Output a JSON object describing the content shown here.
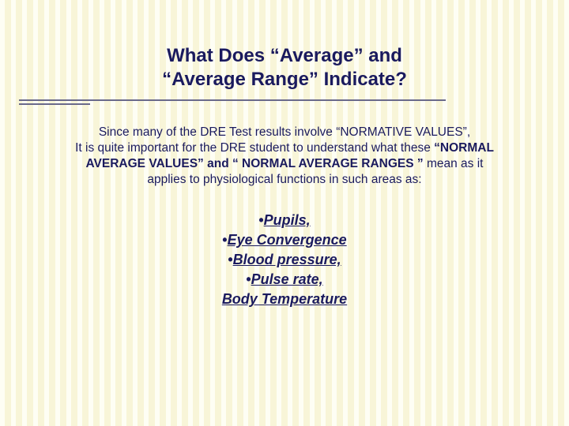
{
  "colors": {
    "text": "#1a1a5e",
    "rule": "#6a6a8a",
    "bg_base": "#fefef4",
    "bg_stripe": "#f8f5d8"
  },
  "title": {
    "line1": "What Does “Average” and",
    "line2": "“Average Range” Indicate?",
    "fontsize": 24
  },
  "rule": {
    "top_long": 126,
    "top_short": 131,
    "long_width": 540,
    "short_width": 90
  },
  "body": {
    "line1": "Since many of the DRE Test results involve “NORMATIVE VALUES”,",
    "line2a": "It is quite important for the DRE student to understand what these ",
    "line2b_bold": "“NORMAL AVERAGE VALUES” and “ NORMAL AVERAGE RANGES ”",
    "line2c": " mean as it applies to physiological functions in such areas as:",
    "fontsize": 15.5
  },
  "list": {
    "items": [
      "Pupils,",
      "Eye Convergence",
      "Blood pressure,",
      "Pulse rate,"
    ],
    "last": "Body Temperature",
    "bullet": "•",
    "fontsize": 18
  }
}
